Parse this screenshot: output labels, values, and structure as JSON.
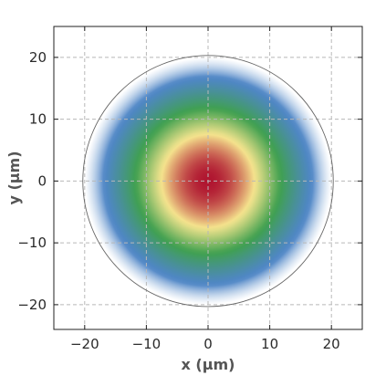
{
  "chart_data": {
    "type": "heatmap",
    "title": "",
    "xlabel": "x (µm)",
    "ylabel": "y (µm)",
    "xlim": [
      -25,
      25
    ],
    "ylim": [
      -24,
      25
    ],
    "x_ticks": [
      -20,
      -10,
      0,
      10,
      20
    ],
    "y_ticks": [
      -20,
      -10,
      0,
      10,
      20
    ],
    "x_tick_labels": [
      "−20",
      "−10",
      "0",
      "10",
      "20"
    ],
    "y_tick_labels": [
      "−20",
      "−10",
      "0",
      "10",
      "20"
    ],
    "grid": true,
    "circle": {
      "center": [
        0,
        0
      ],
      "radius": 20.3
    },
    "field": {
      "shape": "gaussian",
      "center": [
        0,
        0
      ],
      "e2_radius": 20.0,
      "peak_value": 1.0
    },
    "colormap": [
      "#ffffff",
      "#4f86c6",
      "#3fa04f",
      "#f5e58e",
      "#b01530"
    ]
  }
}
